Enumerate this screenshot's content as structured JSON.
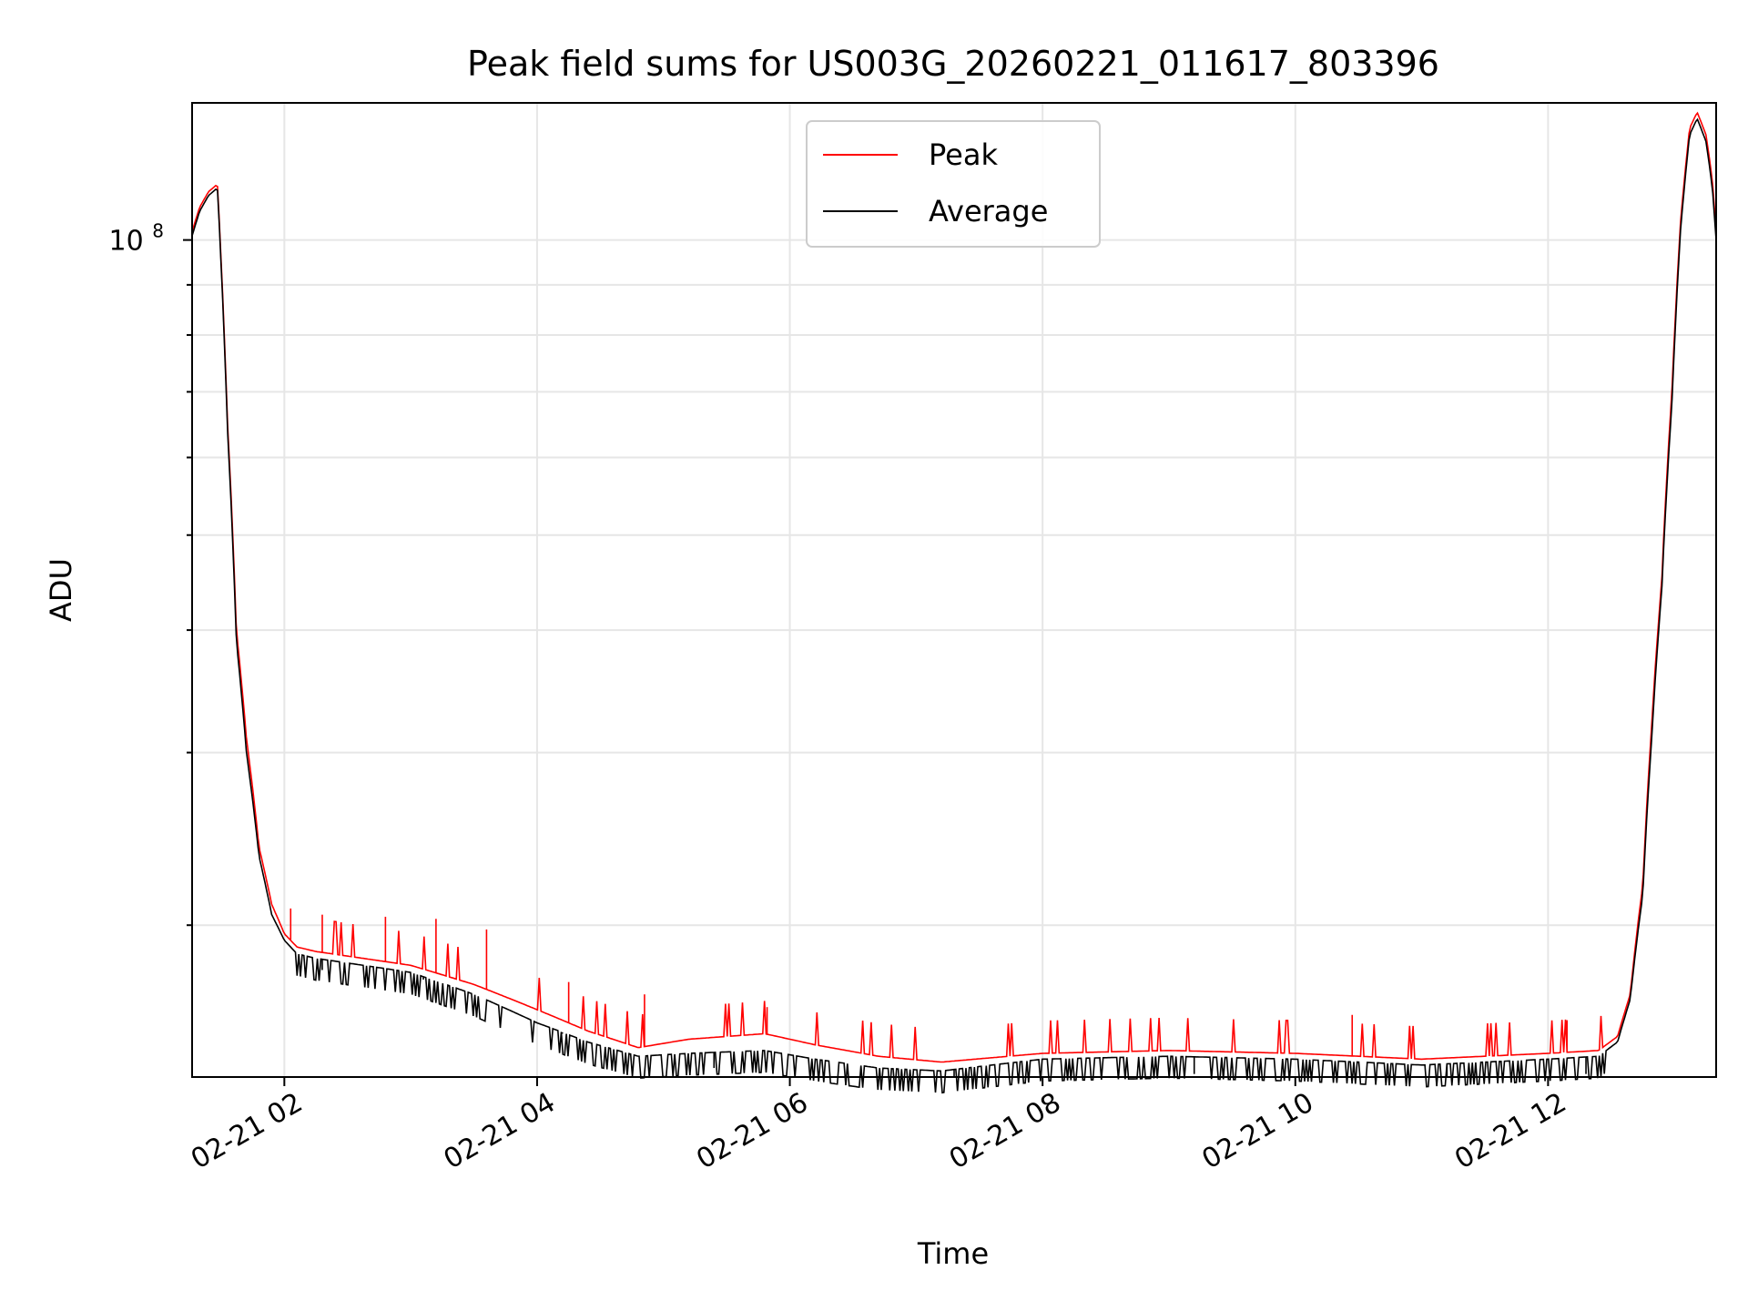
{
  "chart_data": {
    "type": "line",
    "title": "Peak field sums for US003G_20260221_011617_803396",
    "xlabel": "Time",
    "ylabel": "ADU",
    "yscale": "log",
    "ytick_label_base": "10",
    "ytick_label_exp": "8",
    "ytick_value": 100000000,
    "ylim": [
      14000000,
      138000000
    ],
    "xlim_hours": [
      1.27,
      13.33
    ],
    "x_ticks": [
      {
        "hour": 2,
        "label": "02-21 02"
      },
      {
        "hour": 4,
        "label": "02-21 04"
      },
      {
        "hour": 6,
        "label": "02-21 06"
      },
      {
        "hour": 8,
        "label": "02-21 08"
      },
      {
        "hour": 10,
        "label": "02-21 10"
      },
      {
        "hour": 12,
        "label": "02-21 12"
      }
    ],
    "minor_y_ticks": [
      20000000,
      30000000,
      40000000,
      50000000,
      60000000,
      70000000,
      80000000,
      90000000
    ],
    "grid": true,
    "legend_position": "top-center",
    "series": [
      {
        "name": "Peak",
        "color": "#ff0000",
        "x_hours": [
          1.27,
          1.33,
          1.4,
          1.47,
          1.5,
          1.55,
          1.62,
          1.7,
          1.8,
          1.9,
          2.0,
          2.1,
          2.25,
          2.5,
          3.0,
          3.5,
          4.0,
          4.4,
          4.8,
          5.2,
          5.8,
          6.2,
          6.7,
          7.2,
          8.0,
          9.0,
          10.0,
          11.0,
          12.0,
          12.4,
          12.55,
          12.65,
          12.75,
          12.82,
          12.9,
          12.98,
          13.05,
          13.12,
          13.18,
          13.25,
          13.3,
          13.33
        ],
        "values_madu": [
          102,
          108,
          112,
          114,
          95,
          65,
          40,
          31,
          24,
          21,
          19.6,
          19.0,
          18.8,
          18.6,
          18.2,
          17.4,
          16.4,
          15.6,
          15.0,
          15.3,
          15.5,
          15.1,
          14.7,
          14.5,
          14.8,
          14.9,
          14.8,
          14.6,
          14.8,
          14.9,
          15.4,
          17,
          22,
          32,
          45,
          70,
          105,
          130,
          135,
          128,
          115,
          102
        ],
        "spikes": [
          [
            2.05,
            20.8
          ],
          [
            2.3,
            20.5
          ],
          [
            2.8,
            20.4
          ],
          [
            3.2,
            20.3
          ],
          [
            3.6,
            19.8
          ],
          [
            4.25,
            17.5
          ],
          [
            4.85,
            17.0
          ],
          [
            5.82,
            16.5
          ],
          [
            10.45,
            16.2
          ],
          [
            12.15,
            16.0
          ]
        ]
      },
      {
        "name": "Average",
        "color": "#000000",
        "x_hours": [
          1.27,
          1.33,
          1.4,
          1.47,
          1.5,
          1.55,
          1.62,
          1.7,
          1.8,
          1.9,
          2.0,
          2.1,
          2.25,
          2.5,
          3.0,
          3.5,
          4.0,
          4.4,
          4.8,
          5.2,
          5.8,
          6.2,
          6.7,
          7.2,
          8.0,
          9.0,
          10.0,
          11.0,
          12.0,
          12.4,
          12.55,
          12.65,
          12.75,
          12.82,
          12.9,
          12.98,
          13.05,
          13.12,
          13.18,
          13.25,
          13.3,
          13.33
        ],
        "values_madu": [
          101,
          107,
          111,
          113,
          94,
          64,
          39,
          30,
          23.5,
          20.5,
          19.3,
          18.7,
          18.5,
          18.3,
          17.9,
          17.0,
          15.9,
          15.2,
          14.7,
          14.8,
          14.9,
          14.6,
          14.3,
          14.2,
          14.6,
          14.7,
          14.6,
          14.4,
          14.6,
          14.7,
          15.2,
          16.8,
          21.5,
          31,
          44,
          68,
          103,
          128,
          133,
          126,
          113,
          100
        ],
        "dips": [
          [
            2.3,
            18.0
          ],
          [
            3.1,
            17.6
          ],
          [
            4.2,
            15.5
          ],
          [
            5.4,
            14.3
          ],
          [
            7.3,
            14.0
          ],
          [
            9.2,
            14.1
          ],
          [
            11.2,
            14.0
          ],
          [
            12.3,
            14.1
          ]
        ]
      }
    ]
  }
}
